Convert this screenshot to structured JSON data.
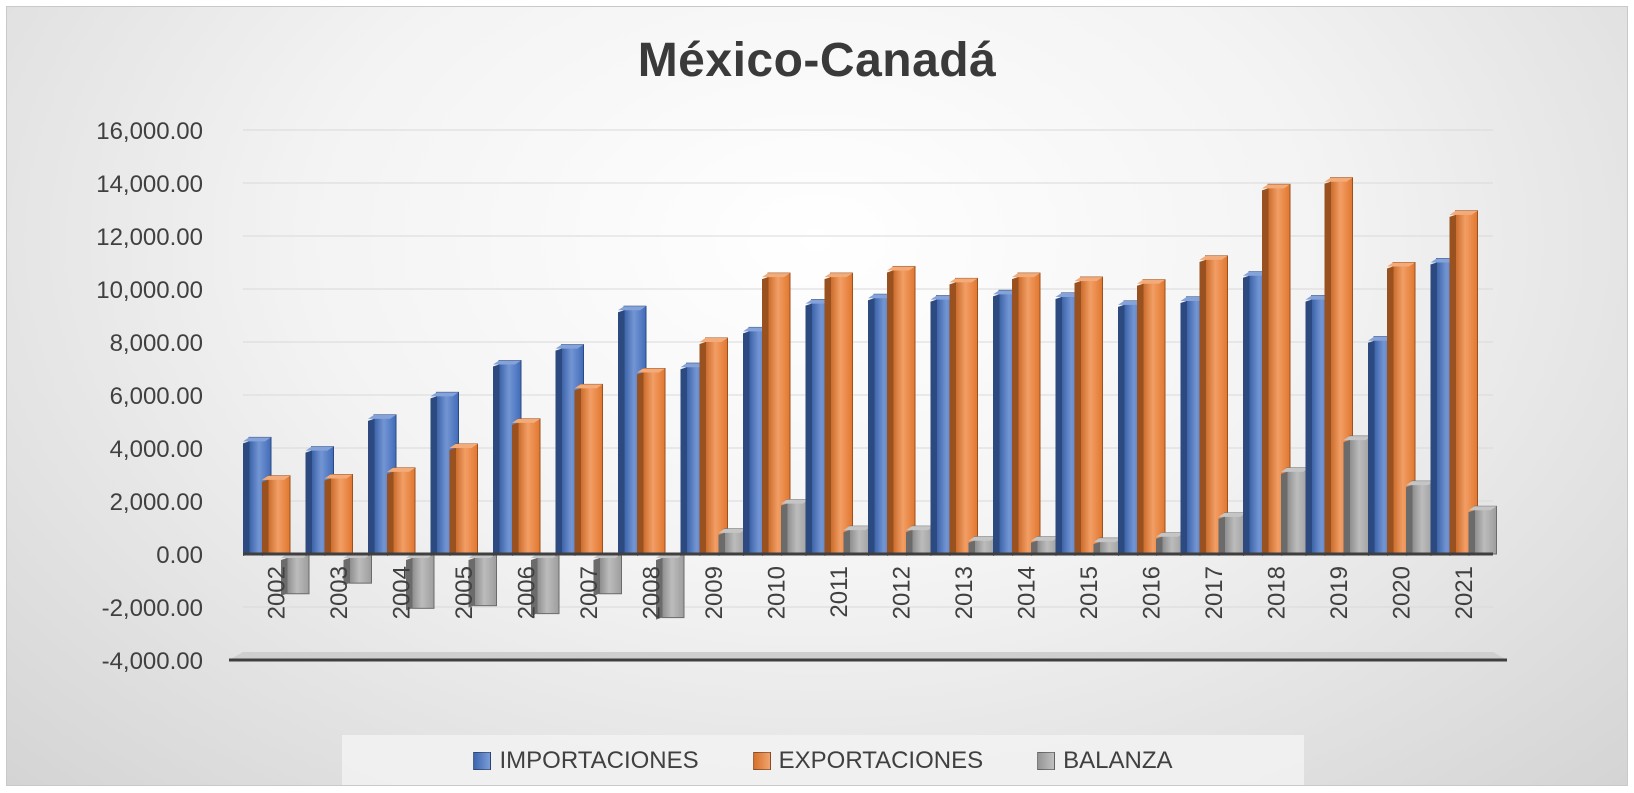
{
  "chart_data": {
    "type": "bar",
    "title": "México-Canadá",
    "xlabel": "",
    "ylabel": "",
    "categories": [
      "2002",
      "2003",
      "2004",
      "2005",
      "2006",
      "2007",
      "2008",
      "2009",
      "2010",
      "2011",
      "2012",
      "2013",
      "2014",
      "2015",
      "2016",
      "2017",
      "2018",
      "2019",
      "2020",
      "2021"
    ],
    "ylim": [
      -4000,
      16000
    ],
    "yticks": [
      "16,000.00",
      "14,000.00",
      "12,000.00",
      "10,000.00",
      "8,000.00",
      "6,000.00",
      "4,000.00",
      "2,000.00",
      "0.00",
      "-2,000.00",
      "-4,000.00"
    ],
    "grid": true,
    "legend_position": "bottom",
    "series": [
      {
        "name": "IMPORTACIONES",
        "color": "#4472c4",
        "values": [
          4400,
          4050,
          5250,
          6100,
          7300,
          7900,
          9350,
          7200,
          8550,
          9600,
          9800,
          9750,
          9950,
          9850,
          9550,
          9700,
          10650,
          9750,
          8200,
          11150
        ]
      },
      {
        "name": "EXPORTACIONES",
        "color": "#ed7d31",
        "values": [
          2950,
          3000,
          3250,
          4150,
          5100,
          6400,
          7000,
          8150,
          10600,
          10600,
          10850,
          10400,
          10600,
          10450,
          10350,
          11250,
          13950,
          14200,
          11000,
          12950
        ]
      },
      {
        "name": "BALANZA",
        "color": "#a5a5a5",
        "values": [
          -1500,
          -1100,
          -2050,
          -1950,
          -2250,
          -1500,
          -2400,
          950,
          2050,
          1050,
          1050,
          650,
          650,
          600,
          800,
          1550,
          3250,
          4450,
          2750,
          1800
        ]
      }
    ]
  }
}
